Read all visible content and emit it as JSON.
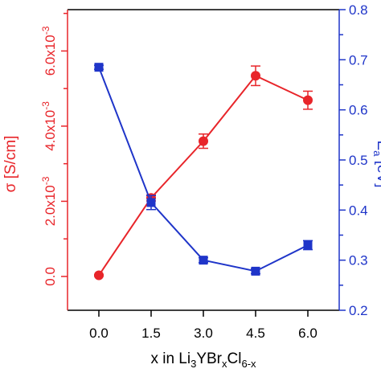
{
  "chart_data": {
    "type": "line",
    "x": [
      0.0,
      1.5,
      3.0,
      4.5,
      6.0
    ],
    "x_tick_labels": [
      "0.0",
      "1.5",
      "3.0",
      "4.5",
      "6.0"
    ],
    "xlim": [
      -0.9,
      6.9
    ],
    "xlabel": {
      "parts": [
        {
          "text": "x in Li",
          "shift": "none"
        },
        {
          "text": "3",
          "shift": "sub"
        },
        {
          "text": "YBr",
          "shift": "none"
        },
        {
          "text": "x",
          "shift": "sub"
        },
        {
          "text": "Cl",
          "shift": "none"
        },
        {
          "text": "6-x",
          "shift": "sub"
        }
      ]
    },
    "y_left": {
      "label": "σ [S/cm]",
      "lim": [
        -0.0009,
        0.0071
      ],
      "color": "#e8252a",
      "ticks": [
        {
          "value": 0.0,
          "mant": "0.0",
          "exp": ""
        },
        {
          "value": 0.002,
          "mant": "2.0x10",
          "exp": "-3"
        },
        {
          "value": 0.004,
          "mant": "4.0x10",
          "exp": "-3"
        },
        {
          "value": 0.006,
          "mant": "6.0x10",
          "exp": "-3"
        }
      ],
      "minor_ticks": [
        0.001,
        0.003,
        0.005,
        0.007
      ]
    },
    "y_right": {
      "label_main": "E",
      "label_sub": "a",
      "label_unit": " [eV]",
      "lim": [
        0.2,
        0.8
      ],
      "color": "#1f35c9",
      "ticks": [
        {
          "value": 0.2,
          "label": "0.2"
        },
        {
          "value": 0.3,
          "label": "0.3"
        },
        {
          "value": 0.4,
          "label": "0.4"
        },
        {
          "value": 0.5,
          "label": "0.5"
        },
        {
          "value": 0.6,
          "label": "0.6"
        },
        {
          "value": 0.7,
          "label": "0.7"
        },
        {
          "value": 0.8,
          "label": "0.8"
        }
      ],
      "minor_ticks": [
        0.25,
        0.35,
        0.45,
        0.55,
        0.65,
        0.75
      ]
    },
    "series": [
      {
        "axis": "left",
        "marker": "circle",
        "color": "#e8252a",
        "values": [
          3e-05,
          0.00209,
          0.0036,
          0.00534,
          0.00469
        ],
        "errors": [
          2e-05,
          8e-05,
          0.00019,
          0.00026,
          0.00024
        ]
      },
      {
        "axis": "right",
        "marker": "square",
        "color": "#1f35c9",
        "values": [
          0.685,
          0.415,
          0.3,
          0.278,
          0.33
        ],
        "errors": [
          0.004,
          0.014,
          0.005,
          0.005,
          0.009
        ]
      }
    ],
    "grid": false
  }
}
